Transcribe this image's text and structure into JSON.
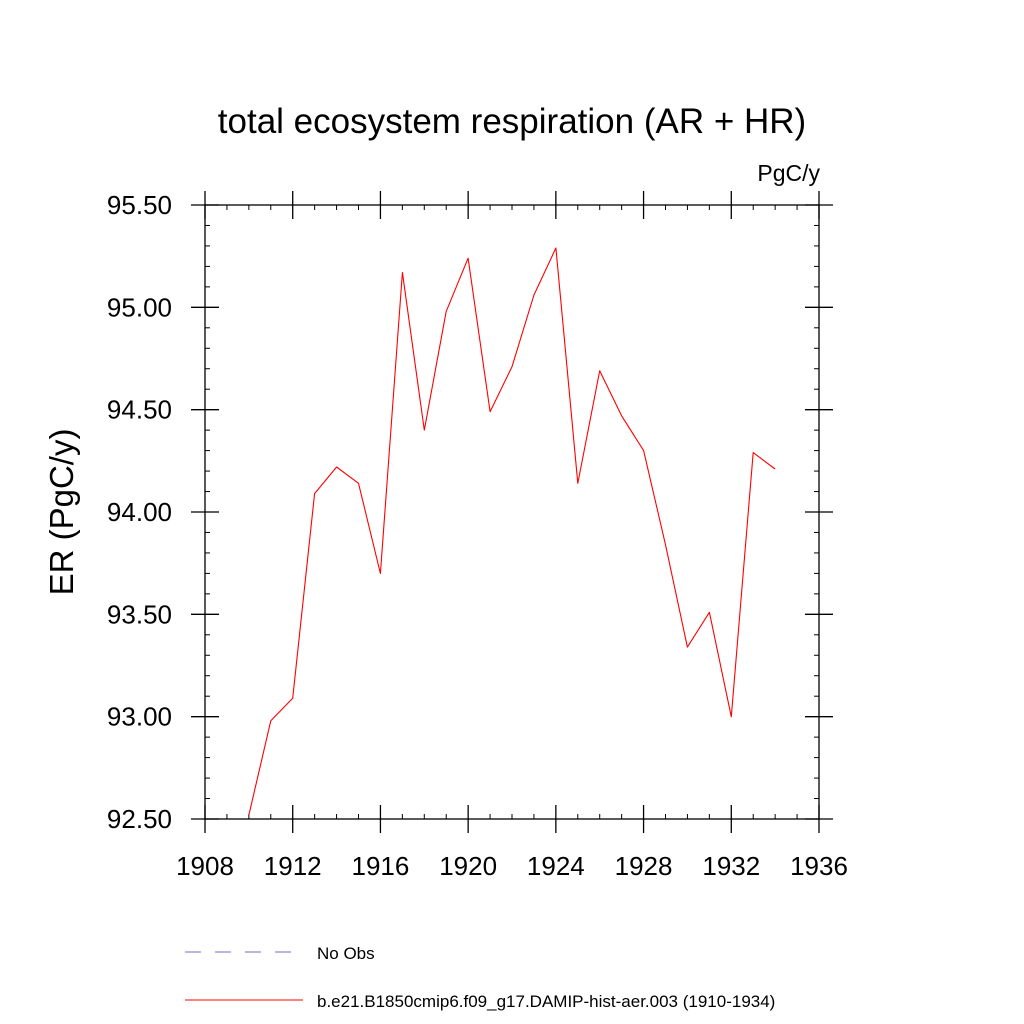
{
  "chart_data": {
    "type": "line",
    "title": "total ecosystem respiration (AR + HR)",
    "units": "PgC/y",
    "ylabel": "ER  (PgC/y)",
    "xlabel": "",
    "xlim": [
      1908,
      1936
    ],
    "ylim": [
      92.5,
      95.5
    ],
    "x_ticks": [
      1908,
      1912,
      1916,
      1920,
      1924,
      1928,
      1932,
      1936
    ],
    "x_tick_labels": [
      "1908",
      "1912",
      "1916",
      "1920",
      "1924",
      "1928",
      "1932",
      "1936"
    ],
    "y_ticks": [
      92.5,
      93.0,
      93.5,
      94.0,
      94.5,
      95.0,
      95.5
    ],
    "y_tick_labels": [
      "92.50",
      "93.00",
      "93.50",
      "94.00",
      "94.50",
      "95.00",
      "95.50"
    ],
    "grid": false,
    "legend_position": "bottom",
    "series": [
      {
        "name": "b.e21.B1850cmip6.f09_g17.DAMIP-hist-aer.003 (1910-1934)",
        "color": "#ff0000",
        "line_style": "solid",
        "x": [
          1910,
          1911,
          1912,
          1913,
          1914,
          1915,
          1916,
          1917,
          1918,
          1919,
          1920,
          1921,
          1922,
          1923,
          1924,
          1925,
          1926,
          1927,
          1928,
          1929,
          1930,
          1931,
          1932,
          1933,
          1934
        ],
        "y": [
          92.52,
          92.98,
          93.09,
          94.09,
          94.22,
          94.14,
          93.7,
          95.17,
          94.4,
          94.98,
          95.24,
          94.49,
          94.71,
          95.06,
          95.29,
          94.14,
          94.69,
          94.47,
          94.3,
          93.84,
          93.34,
          93.51,
          93.0,
          94.29,
          94.21
        ]
      },
      {
        "name": "No Obs",
        "color": "#6f6fc8",
        "line_style": "dashed",
        "x": [],
        "y": []
      }
    ]
  }
}
